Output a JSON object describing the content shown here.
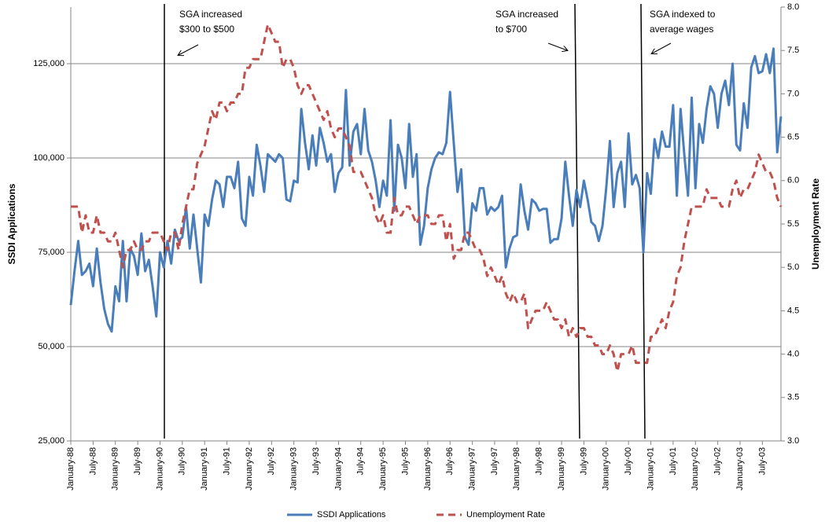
{
  "chart_data": {
    "type": "line",
    "categories": [
      "January-88",
      null,
      null,
      null,
      null,
      null,
      "July-88",
      null,
      null,
      null,
      null,
      null,
      "January-89",
      null,
      null,
      null,
      null,
      null,
      "July-89",
      null,
      null,
      null,
      null,
      null,
      "January-90",
      null,
      null,
      null,
      null,
      null,
      "July-90",
      null,
      null,
      null,
      null,
      null,
      "January-91",
      null,
      null,
      null,
      null,
      null,
      "July-91",
      null,
      null,
      null,
      null,
      null,
      "January-92",
      null,
      null,
      null,
      null,
      null,
      "July-92",
      null,
      null,
      null,
      null,
      null,
      "January-93",
      null,
      null,
      null,
      null,
      null,
      "July-93",
      null,
      null,
      null,
      null,
      null,
      "January-94",
      null,
      null,
      null,
      null,
      null,
      "July-94",
      null,
      null,
      null,
      null,
      null,
      "January-95",
      null,
      null,
      null,
      null,
      null,
      "July-95",
      null,
      null,
      null,
      null,
      null,
      "January-96",
      null,
      null,
      null,
      null,
      null,
      "July-96",
      null,
      null,
      null,
      null,
      null,
      "January-97",
      null,
      null,
      null,
      null,
      null,
      "July-97",
      null,
      null,
      null,
      null,
      null,
      "January-98",
      null,
      null,
      null,
      null,
      null,
      "July-98",
      null,
      null,
      null,
      null,
      null,
      "January-99",
      null,
      null,
      null,
      null,
      null,
      "July-99",
      null,
      null,
      null,
      null,
      null,
      "January-00",
      null,
      null,
      null,
      null,
      null,
      "July-00",
      null,
      null,
      null,
      null,
      null,
      "January-01",
      null,
      null,
      null,
      null,
      null,
      "July-01",
      null,
      null,
      null,
      null,
      null,
      "January-02",
      null,
      null,
      null,
      null,
      null,
      "July-02",
      null,
      null,
      null,
      null,
      null,
      "January-03",
      null,
      null,
      null,
      null,
      null,
      "July-03",
      null,
      null,
      null,
      null,
      null
    ],
    "series": [
      {
        "name": "SSDI Applications",
        "color": "#4a7ebb",
        "axis": "y",
        "values": [
          61000,
          70000,
          78000,
          69000,
          70000,
          72000,
          66000,
          76000,
          67000,
          60000,
          56000,
          54000,
          66000,
          62000,
          78000,
          62000,
          76000,
          74000,
          69000,
          80000,
          70000,
          73000,
          66000,
          58000,
          75000,
          71000,
          78000,
          72000,
          81000,
          78000,
          79000,
          87000,
          76000,
          85000,
          76000,
          67000,
          85000,
          82000,
          89000,
          94000,
          93000,
          87000,
          95000,
          95000,
          92000,
          99000,
          84000,
          82000,
          95000,
          90000,
          103500,
          98000,
          91000,
          101000,
          100000,
          99000,
          101000,
          100000,
          89000,
          88500,
          94000,
          93500,
          113000,
          104000,
          97000,
          106000,
          98000,
          108000,
          104000,
          99000,
          101000,
          91000,
          96000,
          97500,
          118000,
          98000,
          107000,
          109000,
          101000,
          113000,
          102000,
          99000,
          94000,
          87000,
          94000,
          90000,
          110000,
          86000,
          103500,
          100000,
          92000,
          109000,
          95000,
          101000,
          77000,
          82000,
          92000,
          97000,
          100000,
          101500,
          101000,
          104000,
          117500,
          104000,
          91000,
          97000,
          79000,
          77000,
          88000,
          86000,
          92000,
          92000,
          85000,
          87000,
          86000,
          87000,
          90000,
          71000,
          76000,
          79000,
          79500,
          93000,
          86000,
          81000,
          89000,
          88000,
          86000,
          86500,
          86500,
          77500,
          78500,
          78500,
          84000,
          99000,
          90000,
          82000,
          91500,
          87000,
          94000,
          89000,
          83000,
          82000,
          78000,
          82000,
          92000,
          104500,
          87000,
          96000,
          99000,
          87000,
          106500,
          93000,
          95500,
          92000,
          75000,
          96000,
          90500,
          105000,
          100000,
          107000,
          103000,
          103000,
          114000,
          90000,
          113000,
          101000,
          90000,
          116000,
          92000,
          109000,
          104000,
          113000,
          119000,
          117000,
          108000,
          117000,
          120500,
          114000,
          125000,
          103500,
          102000,
          114500,
          108000,
          124000,
          127000,
          122500,
          123000,
          127500,
          122500,
          129000,
          101500,
          111000
        ]
      },
      {
        "name": "Unemployment Rate",
        "color": "#c0504d",
        "axis": "y2",
        "dashed": true,
        "values": [
          5.7,
          5.7,
          5.7,
          5.4,
          5.6,
          5.4,
          5.4,
          5.6,
          5.4,
          5.4,
          5.3,
          5.3,
          5.4,
          5.2,
          5.0,
          5.2,
          5.2,
          5.3,
          5.2,
          5.2,
          5.3,
          5.3,
          5.4,
          5.4,
          5.4,
          5.3,
          5.2,
          5.4,
          5.4,
          5.2,
          5.5,
          5.7,
          5.9,
          5.9,
          6.2,
          6.3,
          6.4,
          6.6,
          6.8,
          6.7,
          6.9,
          6.9,
          6.8,
          6.9,
          6.9,
          7.0,
          7.0,
          7.3,
          7.3,
          7.4,
          7.4,
          7.4,
          7.6,
          7.8,
          7.7,
          7.6,
          7.6,
          7.3,
          7.4,
          7.4,
          7.3,
          7.1,
          7.0,
          7.1,
          7.1,
          7.0,
          6.9,
          6.8,
          6.7,
          6.8,
          6.6,
          6.5,
          6.6,
          6.6,
          6.5,
          6.4,
          6.1,
          6.1,
          6.1,
          6.0,
          5.9,
          5.8,
          5.6,
          5.5,
          5.6,
          5.4,
          5.4,
          5.8,
          5.6,
          5.6,
          5.7,
          5.7,
          5.6,
          5.5,
          5.6,
          5.6,
          5.6,
          5.5,
          5.5,
          5.6,
          5.6,
          5.3,
          5.5,
          5.1,
          5.2,
          5.2,
          5.4,
          5.4,
          5.3,
          5.2,
          5.2,
          5.1,
          4.9,
          5.0,
          4.9,
          4.8,
          4.9,
          4.7,
          4.6,
          4.7,
          4.6,
          4.6,
          4.7,
          4.3,
          4.4,
          4.5,
          4.5,
          4.5,
          4.6,
          4.5,
          4.4,
          4.4,
          4.3,
          4.4,
          4.2,
          4.3,
          4.2,
          4.3,
          4.3,
          4.2,
          4.2,
          4.1,
          4.1,
          4.0,
          4.0,
          4.1,
          4.0,
          3.8,
          4.0,
          4.0,
          4.0,
          4.1,
          3.9,
          3.9,
          3.9,
          3.9,
          4.2,
          4.2,
          4.3,
          4.4,
          4.3,
          4.5,
          4.6,
          4.9,
          5.0,
          5.3,
          5.5,
          5.7,
          5.7,
          5.7,
          5.7,
          5.9,
          5.8,
          5.8,
          5.8,
          5.7,
          5.7,
          5.7,
          5.9,
          6.0,
          5.8,
          5.9,
          5.9,
          6.0,
          6.1,
          6.3,
          6.2,
          6.1,
          6.1,
          6.0,
          5.8,
          5.7
        ]
      }
    ],
    "y_label": "SSDI Applications",
    "y2_label": "Unemployment Rate",
    "ylim": [
      25000,
      140000
    ],
    "yticks": [
      {
        "value": 25000,
        "label": "25,000"
      },
      {
        "value": 50000,
        "label": "50,000"
      },
      {
        "value": 75000,
        "label": "75,000"
      },
      {
        "value": 100000,
        "label": "100,000"
      },
      {
        "value": 125000,
        "label": "125,000"
      }
    ],
    "y2lim": [
      3,
      8
    ],
    "y2ticks": [
      {
        "value": 3,
        "label": "3.0"
      },
      {
        "value": 3.5,
        "label": "3.5"
      },
      {
        "value": 4,
        "label": "4.0"
      },
      {
        "value": 4.5,
        "label": "4.5"
      },
      {
        "value": 5,
        "label": "5.0"
      },
      {
        "value": 5.5,
        "label": "5.5"
      },
      {
        "value": 6,
        "label": "6.0"
      },
      {
        "value": 6.5,
        "label": "6.5"
      },
      {
        "value": 7,
        "label": "7.0"
      },
      {
        "value": 7.5,
        "label": "7.5"
      },
      {
        "value": 8,
        "label": "8.0"
      }
    ],
    "grid": true,
    "legend": "bottom",
    "annotations": [
      {
        "lines": [
          "SGA increased",
          "$300 to $500"
        ]
      },
      {
        "lines": [
          "SGA increased",
          "to $700"
        ]
      },
      {
        "lines": [
          "SGA indexed to",
          "average wages"
        ]
      }
    ]
  }
}
